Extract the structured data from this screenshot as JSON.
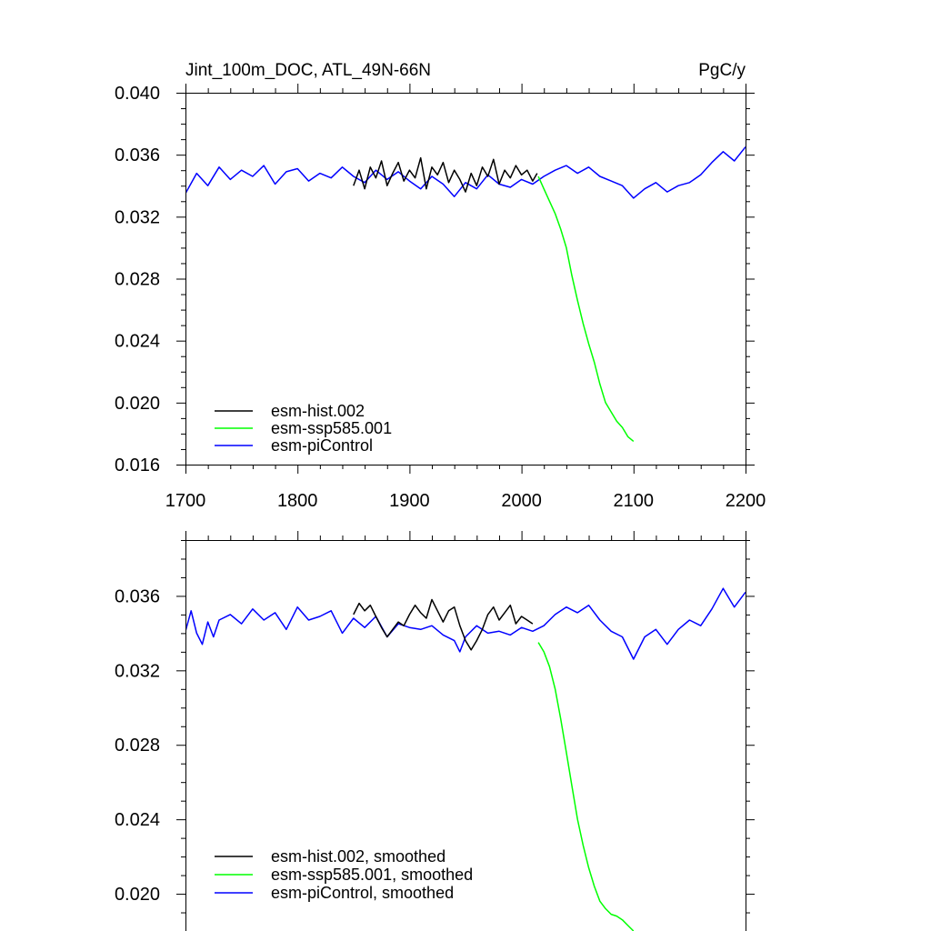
{
  "chart_data": [
    {
      "type": "line",
      "title_left": "Jint_100m_DOC, ATL_49N-66N",
      "title_right": "PgC/y",
      "xlabel": "",
      "ylabel": "",
      "xlim": [
        1700,
        2200
      ],
      "ylim": [
        0.016,
        0.04
      ],
      "x_ticks": [
        1700,
        1800,
        1900,
        2000,
        2100,
        2200
      ],
      "x_tick_labels": [
        "1700",
        "1800",
        "1900",
        "2000",
        "2100",
        "2200"
      ],
      "y_ticks": [
        0.016,
        0.02,
        0.024,
        0.028,
        0.032,
        0.036,
        0.04
      ],
      "y_tick_labels": [
        "0.016",
        "0.020",
        "0.024",
        "0.028",
        "0.032",
        "0.036",
        "0.040"
      ],
      "legend_position": "bottom-left",
      "series": [
        {
          "name": "esm-hist.002",
          "color": "#000000",
          "x": [
            1850,
            1855,
            1860,
            1865,
            1870,
            1875,
            1880,
            1885,
            1890,
            1895,
            1900,
            1905,
            1910,
            1915,
            1920,
            1925,
            1930,
            1935,
            1940,
            1945,
            1950,
            1955,
            1960,
            1965,
            1970,
            1975,
            1980,
            1985,
            1990,
            1995,
            2000,
            2005,
            2010,
            2014
          ],
          "y": [
            0.034,
            0.035,
            0.0338,
            0.0352,
            0.0345,
            0.0356,
            0.034,
            0.0348,
            0.0355,
            0.0343,
            0.035,
            0.0345,
            0.0358,
            0.0338,
            0.0352,
            0.0347,
            0.0355,
            0.0342,
            0.035,
            0.0344,
            0.0336,
            0.0348,
            0.034,
            0.0352,
            0.0346,
            0.0357,
            0.0341,
            0.035,
            0.0345,
            0.0353,
            0.0347,
            0.035,
            0.0343,
            0.0348
          ]
        },
        {
          "name": "esm-ssp585.001",
          "color": "#00ff00",
          "x": [
            2015,
            2020,
            2025,
            2030,
            2035,
            2040,
            2045,
            2050,
            2055,
            2060,
            2065,
            2070,
            2075,
            2080,
            2085,
            2090,
            2095,
            2100
          ],
          "y": [
            0.0346,
            0.0338,
            0.033,
            0.0322,
            0.0312,
            0.03,
            0.0282,
            0.0266,
            0.0251,
            0.0238,
            0.0226,
            0.0212,
            0.02,
            0.0194,
            0.0188,
            0.0184,
            0.0178,
            0.0175
          ]
        },
        {
          "name": "esm-piControl",
          "color": "#0000ff",
          "x": [
            1700,
            1710,
            1720,
            1730,
            1740,
            1750,
            1760,
            1770,
            1780,
            1790,
            1800,
            1810,
            1820,
            1830,
            1840,
            1850,
            1860,
            1870,
            1880,
            1890,
            1900,
            1910,
            1920,
            1930,
            1940,
            1950,
            1960,
            1970,
            1980,
            1990,
            2000,
            2010,
            2020,
            2030,
            2040,
            2050,
            2060,
            2070,
            2080,
            2090,
            2100,
            2110,
            2120,
            2130,
            2140,
            2150,
            2160,
            2170,
            2180,
            2190,
            2200
          ],
          "y": [
            0.0335,
            0.0348,
            0.034,
            0.0352,
            0.0344,
            0.035,
            0.0346,
            0.0353,
            0.0341,
            0.0349,
            0.0351,
            0.0343,
            0.0348,
            0.0345,
            0.0352,
            0.0346,
            0.0342,
            0.035,
            0.0344,
            0.0349,
            0.0343,
            0.0338,
            0.0346,
            0.0341,
            0.0333,
            0.0342,
            0.0338,
            0.0347,
            0.0341,
            0.0339,
            0.0344,
            0.0341,
            0.0346,
            0.035,
            0.0353,
            0.0348,
            0.0352,
            0.0346,
            0.0343,
            0.034,
            0.0332,
            0.0338,
            0.0342,
            0.0336,
            0.034,
            0.0342,
            0.0347,
            0.0355,
            0.0362,
            0.0356,
            0.0365
          ]
        }
      ]
    },
    {
      "type": "line",
      "title_left": "",
      "title_right": "",
      "xlabel": "",
      "ylabel": "",
      "xlim": [
        1700,
        2200
      ],
      "ylim": [
        0.018,
        0.039
      ],
      "x_ticks": [],
      "x_tick_labels": [],
      "y_ticks": [
        0.02,
        0.024,
        0.028,
        0.032,
        0.036
      ],
      "y_tick_labels": [
        "0.020",
        "0.024",
        "0.028",
        "0.032",
        "0.036"
      ],
      "legend_position": "bottom-left",
      "series": [
        {
          "name": "esm-hist.002, smoothed",
          "color": "#000000",
          "x": [
            1850,
            1855,
            1860,
            1865,
            1870,
            1875,
            1880,
            1885,
            1890,
            1895,
            1900,
            1905,
            1910,
            1915,
            1920,
            1925,
            1930,
            1935,
            1940,
            1945,
            1950,
            1955,
            1960,
            1965,
            1970,
            1975,
            1980,
            1985,
            1990,
            1995,
            2000,
            2005,
            2010
          ],
          "y": [
            0.035,
            0.0356,
            0.0352,
            0.0355,
            0.0349,
            0.0343,
            0.0338,
            0.0342,
            0.0346,
            0.0344,
            0.035,
            0.0355,
            0.0351,
            0.0348,
            0.0358,
            0.0352,
            0.0346,
            0.0352,
            0.0354,
            0.0344,
            0.0336,
            0.0331,
            0.0336,
            0.0342,
            0.035,
            0.0354,
            0.0347,
            0.0351,
            0.0355,
            0.0345,
            0.0349,
            0.0347,
            0.0345
          ]
        },
        {
          "name": "esm-ssp585.001, smoothed",
          "color": "#00ff00",
          "x": [
            2015,
            2020,
            2025,
            2030,
            2035,
            2040,
            2045,
            2050,
            2055,
            2060,
            2065,
            2070,
            2075,
            2080,
            2085,
            2090,
            2095,
            2100
          ],
          "y": [
            0.0335,
            0.033,
            0.0322,
            0.031,
            0.0294,
            0.0276,
            0.0258,
            0.024,
            0.0226,
            0.0214,
            0.0204,
            0.0196,
            0.0192,
            0.0189,
            0.0188,
            0.0186,
            0.0183,
            0.018
          ]
        },
        {
          "name": "esm-piControl, smoothed",
          "color": "#0000ff",
          "x": [
            1700,
            1705,
            1710,
            1715,
            1720,
            1725,
            1730,
            1740,
            1750,
            1760,
            1770,
            1780,
            1790,
            1800,
            1810,
            1820,
            1830,
            1840,
            1850,
            1860,
            1870,
            1880,
            1890,
            1900,
            1910,
            1920,
            1930,
            1940,
            1945,
            1950,
            1960,
            1970,
            1980,
            1990,
            2000,
            2010,
            2020,
            2030,
            2040,
            2050,
            2060,
            2070,
            2080,
            2090,
            2100,
            2110,
            2120,
            2130,
            2140,
            2150,
            2160,
            2170,
            2180,
            2190,
            2200
          ],
          "y": [
            0.0341,
            0.0352,
            0.034,
            0.0334,
            0.0346,
            0.0338,
            0.0347,
            0.035,
            0.0345,
            0.0353,
            0.0347,
            0.0351,
            0.0342,
            0.0354,
            0.0347,
            0.0349,
            0.0352,
            0.034,
            0.0348,
            0.0343,
            0.0349,
            0.0338,
            0.0345,
            0.0343,
            0.0342,
            0.0344,
            0.0339,
            0.0336,
            0.033,
            0.0338,
            0.0344,
            0.034,
            0.0341,
            0.0339,
            0.0343,
            0.0341,
            0.0344,
            0.035,
            0.0354,
            0.0351,
            0.0355,
            0.0347,
            0.0341,
            0.0338,
            0.0326,
            0.0338,
            0.0342,
            0.0334,
            0.0342,
            0.0347,
            0.0344,
            0.0353,
            0.0364,
            0.0354,
            0.0362
          ]
        }
      ]
    }
  ]
}
